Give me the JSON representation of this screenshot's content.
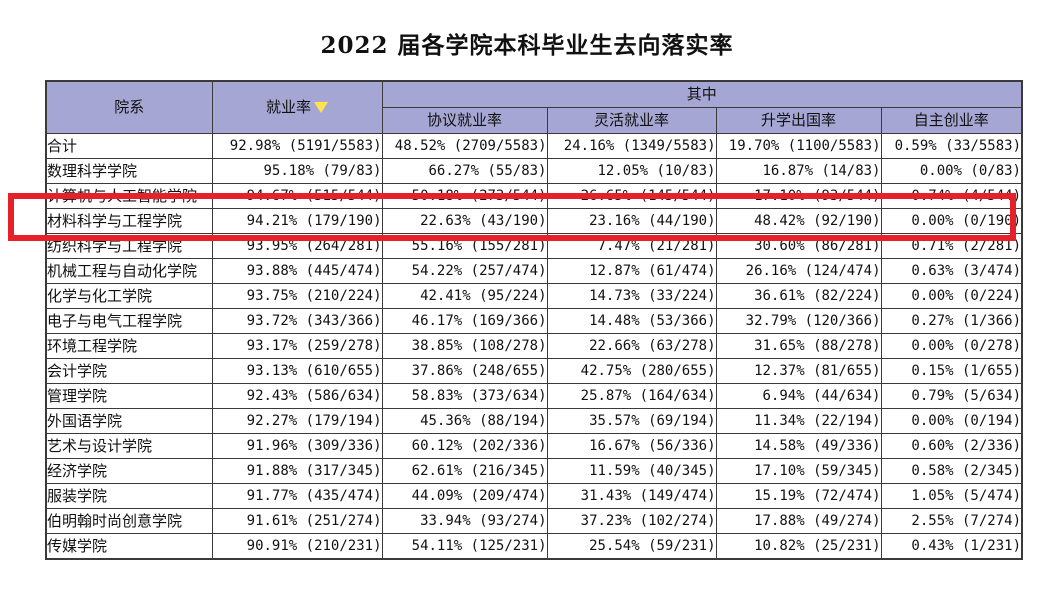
{
  "page": {
    "title": "2022 届各学院本科毕业生去向落实率"
  },
  "colors": {
    "header_bg": "#a6a6d4",
    "highlight_red": "#e7212a",
    "sort_triangle_yellow": "#ffe34d",
    "grid_border": "#3a3a3a"
  },
  "table": {
    "headers": {
      "college": "院系",
      "employment": "就业率",
      "among": "其中",
      "contract": "协议就业率",
      "flexible": "灵活就业率",
      "further": "升学出国率",
      "startup": "自主创业率"
    },
    "sort_indicator": "triangle-down-on-employment-column"
  },
  "chart_data": {
    "type": "table",
    "title": "2022 届各学院本科毕业生去向落实率",
    "columns": [
      "院系",
      "就业率",
      "协议就业率",
      "灵活就业率",
      "升学出国率",
      "自主创业率"
    ],
    "column_group": {
      "label": "其中",
      "spans": [
        "协议就业率",
        "灵活就业率",
        "升学出国率",
        "自主创业率"
      ]
    },
    "rows": [
      [
        "合计",
        "92.98% (5191/5583)",
        "48.52% (2709/5583)",
        "24.16% (1349/5583)",
        "19.70% (1100/5583)",
        "0.59% (33/5583)"
      ],
      [
        "数理科学学院",
        "95.18% (79/83)",
        "66.27% (55/83)",
        "12.05% (10/83)",
        "16.87% (14/83)",
        "0.00% (0/83)"
      ],
      [
        "计算机与人工智能学院",
        "94.67% (515/544)",
        "50.18% (273/544)",
        "26.65% (145/544)",
        "17.10% (93/544)",
        "0.74% (4/544)"
      ],
      [
        "材料科学与工程学院",
        "94.21% (179/190)",
        "22.63% (43/190)",
        "23.16% (44/190)",
        "48.42% (92/190)",
        "0.00% (0/190)"
      ],
      [
        "纺织科学与工程学院",
        "93.95% (264/281)",
        "55.16% (155/281)",
        "7.47% (21/281)",
        "30.60% (86/281)",
        "0.71% (2/281)"
      ],
      [
        "机械工程与自动化学院",
        "93.88% (445/474)",
        "54.22% (257/474)",
        "12.87% (61/474)",
        "26.16% (124/474)",
        "0.63% (3/474)"
      ],
      [
        "化学与化工学院",
        "93.75% (210/224)",
        "42.41% (95/224)",
        "14.73% (33/224)",
        "36.61% (82/224)",
        "0.00% (0/224)"
      ],
      [
        "电子与电气工程学院",
        "93.72% (343/366)",
        "46.17% (169/366)",
        "14.48% (53/366)",
        "32.79% (120/366)",
        "0.27% (1/366)"
      ],
      [
        "环境工程学院",
        "93.17% (259/278)",
        "38.85% (108/278)",
        "22.66% (63/278)",
        "31.65% (88/278)",
        "0.00% (0/278)"
      ],
      [
        "会计学院",
        "93.13% (610/655)",
        "37.86% (248/655)",
        "42.75% (280/655)",
        "12.37% (81/655)",
        "0.15% (1/655)"
      ],
      [
        "管理学院",
        "92.43% (586/634)",
        "58.83% (373/634)",
        "25.87% (164/634)",
        "6.94% (44/634)",
        "0.79% (5/634)"
      ],
      [
        "外国语学院",
        "92.27% (179/194)",
        "45.36% (88/194)",
        "35.57% (69/194)",
        "11.34% (22/194)",
        "0.00% (0/194)"
      ],
      [
        "艺术与设计学院",
        "91.96% (309/336)",
        "60.12% (202/336)",
        "16.67% (56/336)",
        "14.58% (49/336)",
        "0.60% (2/336)"
      ],
      [
        "经济学院",
        "91.88% (317/345)",
        "62.61% (216/345)",
        "11.59% (40/345)",
        "17.10% (59/345)",
        "0.58% (2/345)"
      ],
      [
        "服装学院",
        "91.77% (435/474)",
        "44.09% (209/474)",
        "31.43% (149/474)",
        "15.19% (72/474)",
        "1.05% (5/474)"
      ],
      [
        "伯明翰时尚创意学院",
        "91.61% (251/274)",
        "33.94% (93/274)",
        "37.23% (102/274)",
        "17.88% (49/274)",
        "2.55% (7/274)"
      ],
      [
        "传媒学院",
        "90.91% (210/231)",
        "54.11% (125/231)",
        "25.54% (59/231)",
        "10.82% (25/231)",
        "0.43% (1/231)"
      ]
    ],
    "annotation": {
      "shape": "red-rectangle",
      "highlighted_row": "材料科学与工程学院"
    }
  }
}
